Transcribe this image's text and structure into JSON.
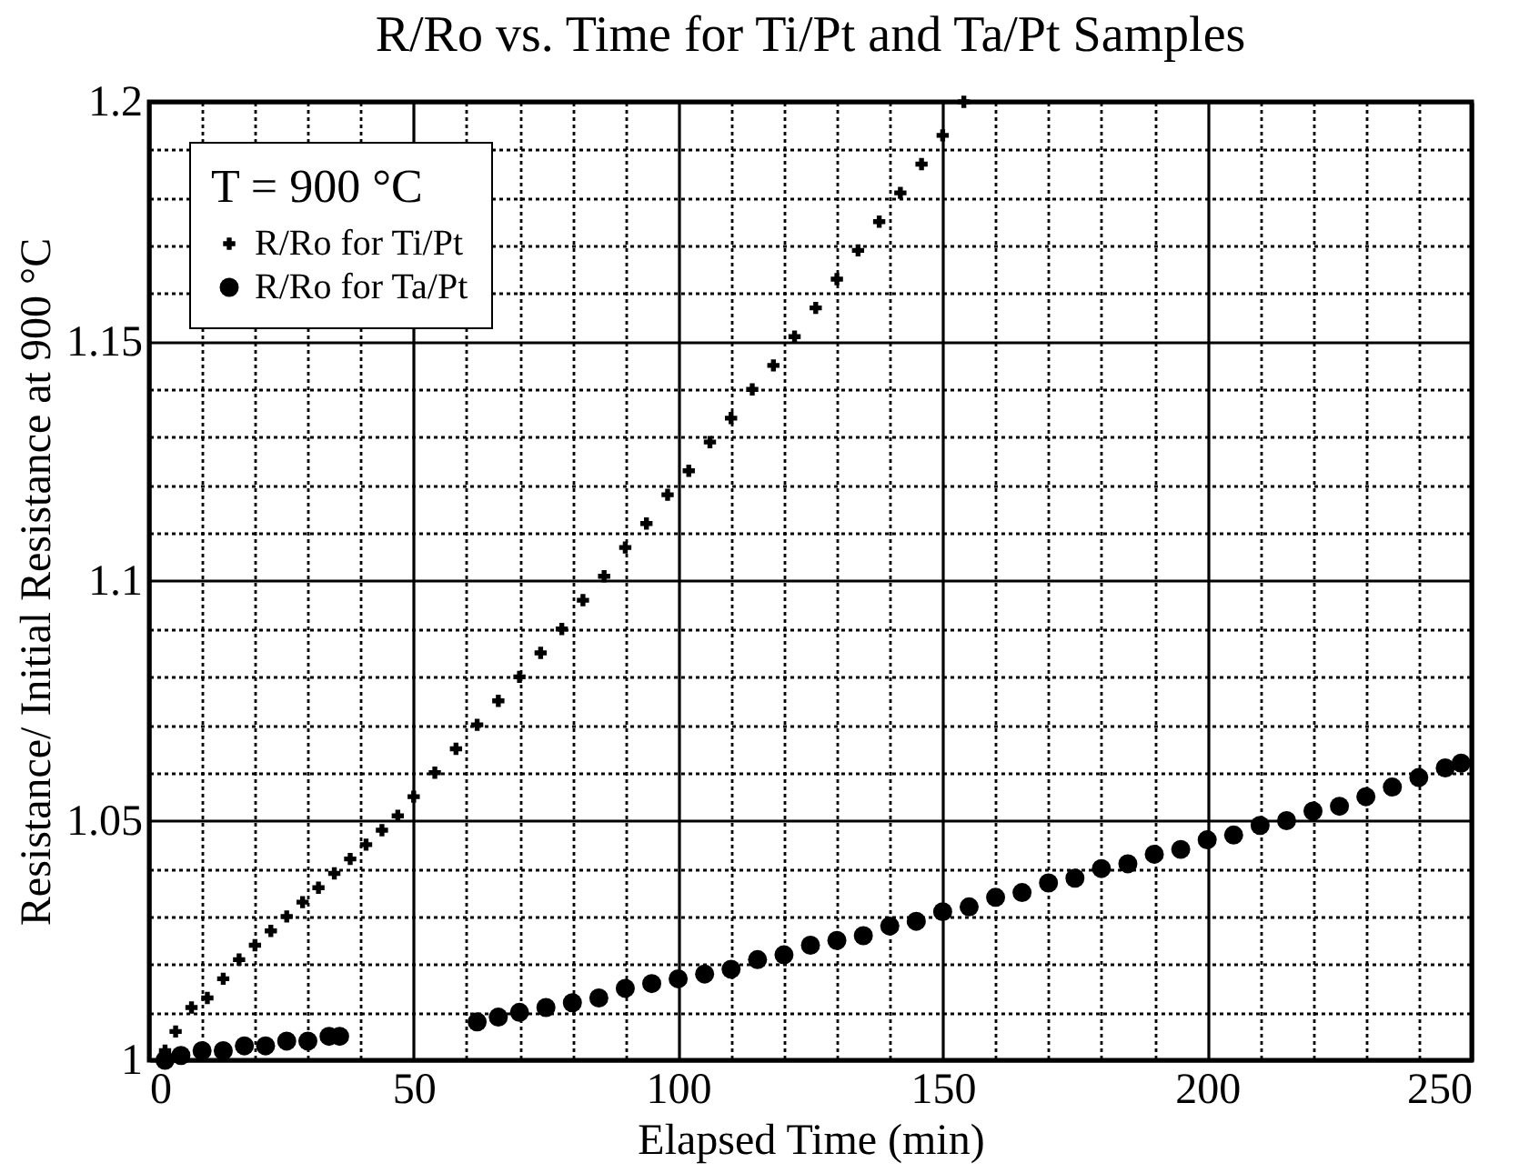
{
  "chart_data": {
    "type": "scatter",
    "title": "R/Ro vs. Time for Ti/Pt and Ta/Pt Samples",
    "xlabel": "Elapsed Time (min)",
    "ylabel": "Resistance/ Initial Resistance at 900 °C",
    "legend_title": "T = 900 °C",
    "legend": "top left",
    "grid": true,
    "xlim": [
      0,
      250
    ],
    "ylim": [
      1,
      1.2
    ],
    "xticks": [
      0,
      {
        "value": 10,
        "label": null
      },
      {
        "value": 20,
        "label": null
      },
      {
        "value": 30,
        "label": null
      },
      {
        "value": 40,
        "label": null
      },
      50,
      {
        "value": 60,
        "label": null
      },
      {
        "value": 70,
        "label": null
      },
      {
        "value": 80,
        "label": null
      },
      {
        "value": 90,
        "label": null
      },
      100,
      {
        "value": 110,
        "label": null
      },
      {
        "value": 120,
        "label": null
      },
      {
        "value": 130,
        "label": null
      },
      {
        "value": 140,
        "label": null
      },
      150,
      {
        "value": 160,
        "label": null
      },
      {
        "value": 170,
        "label": null
      },
      {
        "value": 180,
        "label": null
      },
      {
        "value": 190,
        "label": null
      },
      200,
      {
        "value": 210,
        "label": null
      },
      {
        "value": 220,
        "label": null
      },
      {
        "value": 230,
        "label": null
      },
      {
        "value": 240,
        "label": null
      },
      250
    ],
    "yticks": [
      1,
      {
        "value": 1.01,
        "label": null
      },
      {
        "value": 1.02,
        "label": null
      },
      {
        "value": 1.03,
        "label": null
      },
      {
        "value": 1.04,
        "label": null
      },
      1.05,
      {
        "value": 1.06,
        "label": null
      },
      {
        "value": 1.07,
        "label": null
      },
      {
        "value": 1.08,
        "label": null
      },
      {
        "value": 1.09,
        "label": null
      },
      1.1,
      {
        "value": 1.11,
        "label": null
      },
      {
        "value": 1.12,
        "label": null
      },
      {
        "value": 1.13,
        "label": null
      },
      {
        "value": 1.14,
        "label": null
      },
      1.15,
      {
        "value": 1.16,
        "label": null
      },
      {
        "value": 1.17,
        "label": null
      },
      {
        "value": 1.18,
        "label": null
      },
      {
        "value": 1.19,
        "label": null
      },
      1.2
    ],
    "series": [
      {
        "name": "R/Ro for Ti/Pt",
        "color": "#000000",
        "marker": "cross",
        "x": [
          3,
          5,
          8,
          11,
          14,
          17,
          20,
          23,
          26,
          29,
          32,
          35,
          38,
          41,
          44,
          47,
          50,
          54,
          58,
          62,
          66,
          70,
          74,
          78,
          82,
          86,
          90,
          94,
          98,
          102,
          106,
          110,
          114,
          118,
          122,
          126,
          130,
          134,
          138,
          142,
          146,
          150,
          154
        ],
        "values": [
          1.002,
          1.006,
          1.011,
          1.013,
          1.017,
          1.021,
          1.024,
          1.027,
          1.03,
          1.033,
          1.036,
          1.039,
          1.042,
          1.045,
          1.048,
          1.051,
          1.055,
          1.06,
          1.065,
          1.07,
          1.075,
          1.08,
          1.085,
          1.09,
          1.096,
          1.101,
          1.107,
          1.112,
          1.118,
          1.123,
          1.129,
          1.134,
          1.14,
          1.145,
          1.151,
          1.157,
          1.163,
          1.169,
          1.175,
          1.181,
          1.187,
          1.193,
          1.2
        ]
      },
      {
        "name": "R/Ro for Ta/Pt",
        "color": "#000000",
        "marker": "circle",
        "x": [
          3,
          6,
          10,
          14,
          18,
          22,
          26,
          30,
          34,
          36,
          62,
          66,
          70,
          75,
          80,
          85,
          90,
          95,
          100,
          105,
          110,
          115,
          120,
          125,
          130,
          135,
          140,
          145,
          150,
          155,
          160,
          165,
          170,
          175,
          180,
          185,
          190,
          195,
          200,
          205,
          210,
          215,
          220,
          225,
          230,
          235,
          240,
          245,
          248
        ],
        "values": [
          1.0,
          1.001,
          1.002,
          1.002,
          1.003,
          1.003,
          1.004,
          1.004,
          1.005,
          1.005,
          1.008,
          1.009,
          1.01,
          1.011,
          1.012,
          1.013,
          1.015,
          1.016,
          1.017,
          1.018,
          1.019,
          1.021,
          1.022,
          1.024,
          1.025,
          1.026,
          1.028,
          1.029,
          1.031,
          1.032,
          1.034,
          1.035,
          1.037,
          1.038,
          1.04,
          1.041,
          1.043,
          1.044,
          1.046,
          1.047,
          1.049,
          1.05,
          1.052,
          1.053,
          1.055,
          1.057,
          1.059,
          1.061,
          1.062
        ]
      }
    ]
  }
}
